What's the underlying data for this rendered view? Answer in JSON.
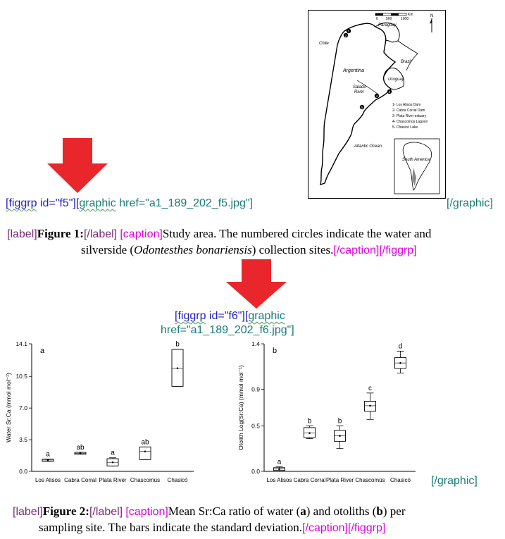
{
  "map": {
    "scale_ticks": [
      "0",
      "500",
      "1000"
    ],
    "scale_unit": "Km",
    "north": "N",
    "labels": {
      "paraguay": "Paraguay",
      "chile": "Chile",
      "argentina": "Argentina",
      "brazil": "Brazil",
      "uruguay": "Uruguay",
      "salado_line1": "Salado",
      "salado_line2": "River",
      "atlantic": "Atlantic Ocean",
      "south_america": "South America"
    },
    "site_numbers": [
      "1",
      "2",
      "3",
      "4",
      "5"
    ],
    "legend": [
      "1- Los Alisos Dam",
      "2- Cabra Corral Dam",
      "3- Plata River estuary",
      "4- Chascomús Lagoon",
      "5- Chasicó Lake"
    ]
  },
  "fig1": {
    "open_figgrp": "[figgrp",
    "id_attr": "id=\"f5\"][",
    "graphic_word": "graphic",
    "href_attr": "href=\"a1_189_202_f5.jpg\"]",
    "close_graphic": "[/graphic]",
    "label_open": "[label]",
    "label_text": "Figure 1:",
    "label_close": "[/label]",
    "caption_open": "[caption]",
    "caption_text1": "Study area. The numbered circles indicate the water and",
    "caption_text2a": "silverside (",
    "caption_italic": "Odontesthes bonariensis",
    "caption_text2b": ") collection sites.",
    "caption_close": "[/caption][/figgrp]"
  },
  "fig2": {
    "open_figgrp": "[figgrp",
    "id_attr": "id=\"f6\"][",
    "graphic_word": "graphic",
    "href_attr": "href=\"a1_189_202_f6.jpg\"]",
    "close_graphic": "[/graphic]",
    "label_open": "[label]",
    "label_text": "Figure 2:",
    "label_close": "[/label]",
    "caption_open": "[caption]",
    "caption_text1a": "Mean Sr:Ca ratio of water (",
    "caption_bold_a": "a",
    "caption_text1b": ") and otoliths (",
    "caption_bold_b": "b",
    "caption_text1c": ") per",
    "caption_text2": "sampling site. The bars indicate the standard deviation.",
    "caption_close": "[/caption][/figgrp]"
  },
  "chart_data": [
    {
      "type": "box",
      "panel_label": "a",
      "ylabel": "Water Sr:Ca (mmol mol⁻¹)",
      "ylim": [
        0,
        14.1
      ],
      "yticks": [
        "0.0",
        "3.5",
        "7.0",
        "10.5",
        "14.1"
      ],
      "categories": [
        "Los Alisos",
        "Cabra Corral",
        "Plata River",
        "Chascomús",
        "Chasicó"
      ],
      "boxes": [
        {
          "q1": 1.1,
          "q3": 1.35,
          "mean": 1.25,
          "min": 1.1,
          "max": 1.35,
          "group": "a"
        },
        {
          "q1": 1.9,
          "q3": 2.1,
          "mean": 2.0,
          "min": 1.9,
          "max": 2.1,
          "group": "ab"
        },
        {
          "q1": 0.6,
          "q3": 1.4,
          "mean": 1.0,
          "min": 0.6,
          "max": 1.5,
          "group": "a"
        },
        {
          "q1": 1.3,
          "q3": 2.7,
          "mean": 2.2,
          "min": 1.3,
          "max": 2.7,
          "group": "ab"
        },
        {
          "q1": 9.4,
          "q3": 13.5,
          "mean": 11.4,
          "min": 9.4,
          "max": 13.5,
          "group": "b"
        }
      ]
    },
    {
      "type": "box",
      "panel_label": "b",
      "ylabel": "Otolith Log(Sr:Ca) (mmol mol⁻¹)",
      "ylim": [
        0,
        1.4
      ],
      "yticks": [
        "0.0",
        "0.5",
        "0.9",
        "1.4"
      ],
      "categories": [
        "Los Alisos",
        "Cabra Corral",
        "Plata River",
        "Chascomús",
        "Chasicó"
      ],
      "boxes": [
        {
          "q1": 0.01,
          "q3": 0.04,
          "mean": 0.025,
          "min": 0.0,
          "max": 0.05,
          "group": "a"
        },
        {
          "q1": 0.37,
          "q3": 0.48,
          "mean": 0.42,
          "min": 0.36,
          "max": 0.5,
          "group": "b"
        },
        {
          "q1": 0.33,
          "q3": 0.45,
          "mean": 0.39,
          "min": 0.25,
          "max": 0.5,
          "group": "b"
        },
        {
          "q1": 0.66,
          "q3": 0.77,
          "mean": 0.72,
          "min": 0.57,
          "max": 0.86,
          "group": "c"
        },
        {
          "q1": 1.13,
          "q3": 1.25,
          "mean": 1.19,
          "min": 1.08,
          "max": 1.32,
          "group": "d"
        }
      ]
    }
  ],
  "colors": {
    "arrow": "#e8262b",
    "tag_blue": "#1f1fbf",
    "tag_teal": "#1a7a7a",
    "tag_purple": "#7a2a7a",
    "tag_pink": "#e000e0"
  }
}
